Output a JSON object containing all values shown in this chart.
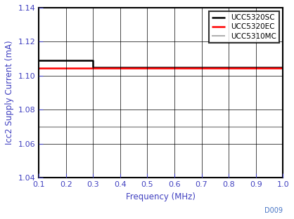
{
  "title": "",
  "xlabel": "Frequency (MHz)",
  "ylabel": "Icc2 Supply Current (mA)",
  "xlim": [
    0.1,
    1.0
  ],
  "ylim": [
    1.04,
    1.14
  ],
  "yticks": [
    1.04,
    1.06,
    1.08,
    1.1,
    1.12,
    1.14
  ],
  "xticks": [
    0.1,
    0.2,
    0.3,
    0.4,
    0.5,
    0.6,
    0.7,
    0.8,
    0.9,
    1.0
  ],
  "series": [
    {
      "label": "UCC5320SC",
      "color": "#000000",
      "linewidth": 1.8,
      "x": [
        0.1,
        0.3,
        0.3,
        1.0
      ],
      "y": [
        1.109,
        1.109,
        1.105,
        1.105
      ]
    },
    {
      "label": "UCC5320EC",
      "color": "#ff0000",
      "linewidth": 1.8,
      "x": [
        0.1,
        1.0
      ],
      "y": [
        1.1045,
        1.1045
      ]
    },
    {
      "label": "UCC5310MC",
      "color": "#b0b0b0",
      "linewidth": 1.5,
      "x": [
        0.1,
        1.0
      ],
      "y": [
        1.07,
        1.07
      ]
    }
  ],
  "legend_loc": "upper right",
  "legend_fontsize": 7.5,
  "axis_label_fontsize": 8.5,
  "tick_fontsize": 8,
  "tick_color": "#4040c0",
  "label_color": "#4040c0",
  "watermark": "D009",
  "watermark_color": "#4472c4",
  "watermark_fontsize": 7,
  "grid_color": "#000000",
  "grid_linewidth": 0.5,
  "spine_linewidth": 1.5
}
